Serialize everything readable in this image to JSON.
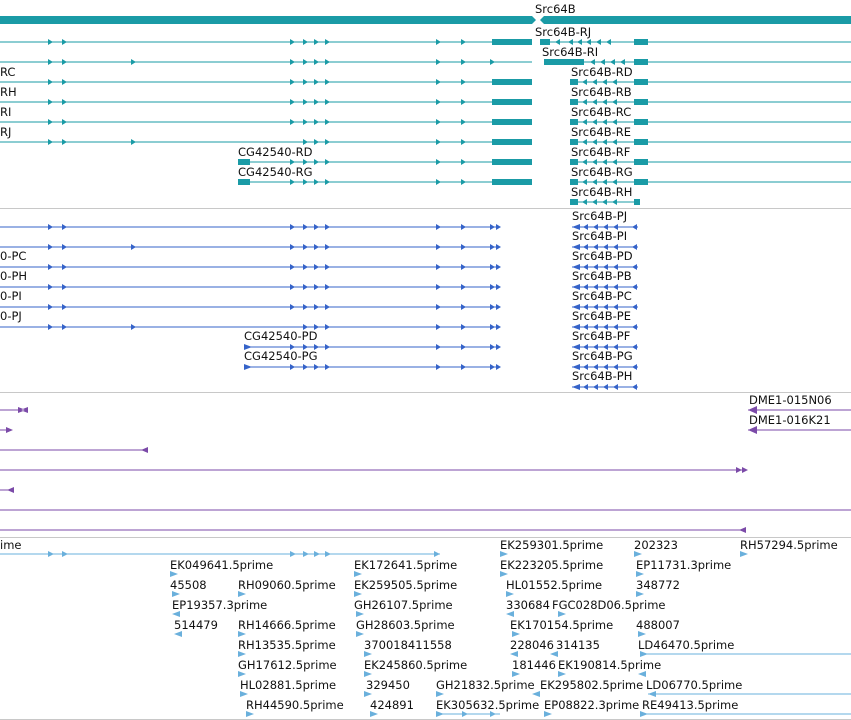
{
  "colors": {
    "gene": "#1a9ba6",
    "protein": "#3563c9",
    "clone": "#7b4aa8",
    "est": "#6ab0dc",
    "divider": "#c8c8c8",
    "label": "#111111"
  },
  "tracks": {
    "gene": {
      "name": "Src64B",
      "transcripts_right": [
        "Src64B-RJ",
        "Src64B-RI",
        "Src64B-RD",
        "Src64B-RB",
        "Src64B-RC",
        "Src64B-RE",
        "Src64B-RF",
        "Src64B-RG",
        "Src64B-RH"
      ],
      "transcripts_left": [
        "RC",
        "RH",
        "RI",
        "RJ"
      ],
      "transcripts_cg": [
        "CG42540-RD",
        "CG42540-RG"
      ]
    },
    "protein": {
      "products_right": [
        "Src64B-PJ",
        "Src64B-PI",
        "Src64B-PD",
        "Src64B-PB",
        "Src64B-PC",
        "Src64B-PE",
        "Src64B-PF",
        "Src64B-PG",
        "Src64B-PH"
      ],
      "products_left": [
        "0-PC",
        "0-PH",
        "0-PI",
        "0-PJ"
      ],
      "products_cg": [
        "CG42540-PD",
        "CG42540-PG"
      ]
    },
    "clones": {
      "labels": [
        "DME1-015N06",
        "DME1-016K21"
      ]
    },
    "ests": {
      "labels": [
        "ime",
        "EK259301.5prime",
        "202323",
        "RH57294.5prime",
        "EK049641.5prime",
        "EK172641.5prime",
        "EK223205.5prime",
        "EP11731.3prime",
        "45508",
        "RH09060.5prime",
        "EK259505.5prime",
        "HL01552.5prime",
        "348772",
        "EP19357.3prime",
        "GH26107.5prime",
        "330684",
        "FGC028D06.5prime",
        "514479",
        "RH14666.5prime",
        "GH28603.5prime",
        "EK170154.5prime",
        "488007",
        "RH13535.5prime",
        "370018411558",
        "228046",
        "314135",
        "LD46470.5prime",
        "GH17612.5prime",
        "EK245860.5prime",
        "181446",
        "EK190814.5prime",
        "HL02881.5prime",
        "329450",
        "GH21832.5prime",
        "EK295802.5prime",
        "LD06770.5prime",
        "RH44590.5prime",
        "424891",
        "EK305632.5prime",
        "EP08822.3prime",
        "RE49413.5prime"
      ]
    }
  }
}
